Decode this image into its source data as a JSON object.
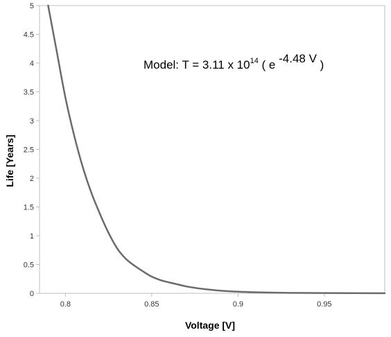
{
  "chart_data": {
    "type": "line",
    "title": "",
    "xlabel": "Voltage [V]",
    "ylabel": "Life [Years]",
    "xlim": [
      0.785,
      0.985
    ],
    "ylim": [
      0,
      5
    ],
    "x_ticks": [
      "0.8",
      "0.85",
      "0.9",
      "0.95"
    ],
    "y_ticks": [
      "0",
      "0.5",
      "1",
      "1.5",
      "2",
      "2.5",
      "3",
      "3.5",
      "4",
      "4.5",
      "5"
    ],
    "grid": false,
    "legend": "none",
    "colors": {
      "line": "#6b6b6b",
      "axis": "#bfbfbf"
    },
    "annotation": {
      "prefix": "Model:  T = 3.11 x 10",
      "superscript": "14",
      "middle": "  ( e",
      "exponent": " -4.48 V",
      "suffix": "  )"
    },
    "series": [
      {
        "x": [
          0.79,
          0.795,
          0.8,
          0.805,
          0.81,
          0.815,
          0.82,
          0.825,
          0.83,
          0.835,
          0.84,
          0.845,
          0.85,
          0.855,
          0.86,
          0.865,
          0.87,
          0.875,
          0.88,
          0.89,
          0.9,
          0.91,
          0.92,
          0.93,
          0.95,
          0.985
        ],
        "y": [
          5.0,
          4.2,
          3.4,
          2.75,
          2.2,
          1.75,
          1.38,
          1.05,
          0.78,
          0.6,
          0.48,
          0.38,
          0.29,
          0.23,
          0.19,
          0.155,
          0.12,
          0.095,
          0.075,
          0.045,
          0.028,
          0.018,
          0.012,
          0.008,
          0.004,
          0.001
        ]
      }
    ]
  }
}
